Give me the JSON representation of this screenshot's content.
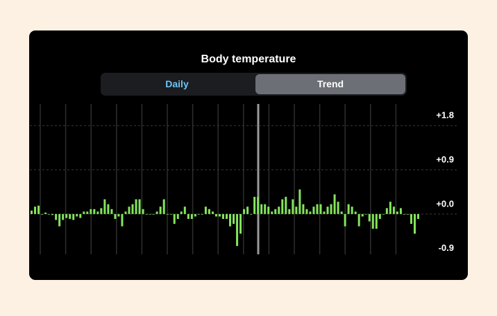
{
  "header": {
    "title": "Body temperature"
  },
  "tabs": [
    {
      "label": "Daily",
      "selected": false
    },
    {
      "label": "Trend",
      "selected": true
    }
  ],
  "chart_data": {
    "type": "bar",
    "color": "#84e55c",
    "grid": true,
    "ylim": [
      -0.82,
      2.24
    ],
    "yticks": [
      {
        "value": 1.8,
        "label": "+1.8"
      },
      {
        "value": 0.9,
        "label": "+0.9"
      },
      {
        "value": 0.0,
        "label": "+0.0"
      },
      {
        "value": -0.9,
        "label": "-0.9"
      }
    ],
    "values": [
      0.07,
      0.15,
      0.17,
      0,
      0.03,
      0,
      -0.02,
      -0.12,
      -0.25,
      -0.12,
      -0.08,
      -0.1,
      -0.12,
      -0.05,
      -0.08,
      0.05,
      0.05,
      0.1,
      0.1,
      0.05,
      0.12,
      0.3,
      0.2,
      0.1,
      -0.1,
      -0.05,
      -0.25,
      0.05,
      0.15,
      0.2,
      0.3,
      0.3,
      0.1,
      0,
      0,
      0,
      0.05,
      0.15,
      0.3,
      0,
      0,
      -0.2,
      -0.1,
      0.05,
      0.15,
      -0.1,
      -0.1,
      -0.05,
      0,
      0,
      0.15,
      0.1,
      0.05,
      -0.05,
      -0.05,
      -0.1,
      -0.1,
      -0.25,
      -0.2,
      -0.65,
      -0.4,
      0.1,
      0.15,
      0,
      0.35,
      0.35,
      0.2,
      0.2,
      0.15,
      0.05,
      0.1,
      0.15,
      0.3,
      0.35,
      0.1,
      0.3,
      0.15,
      0.5,
      0.2,
      0.1,
      0.05,
      0.15,
      0.2,
      0.2,
      0.05,
      0.15,
      0.2,
      0.4,
      0.25,
      0.05,
      -0.25,
      0.2,
      0.15,
      0.05,
      -0.25,
      -0.05,
      0,
      -0.15,
      -0.3,
      -0.3,
      -0.1,
      0,
      0.12,
      0.25,
      0.15,
      0.05,
      0.12,
      0,
      0,
      -0.2,
      -0.4,
      -0.1
    ]
  }
}
